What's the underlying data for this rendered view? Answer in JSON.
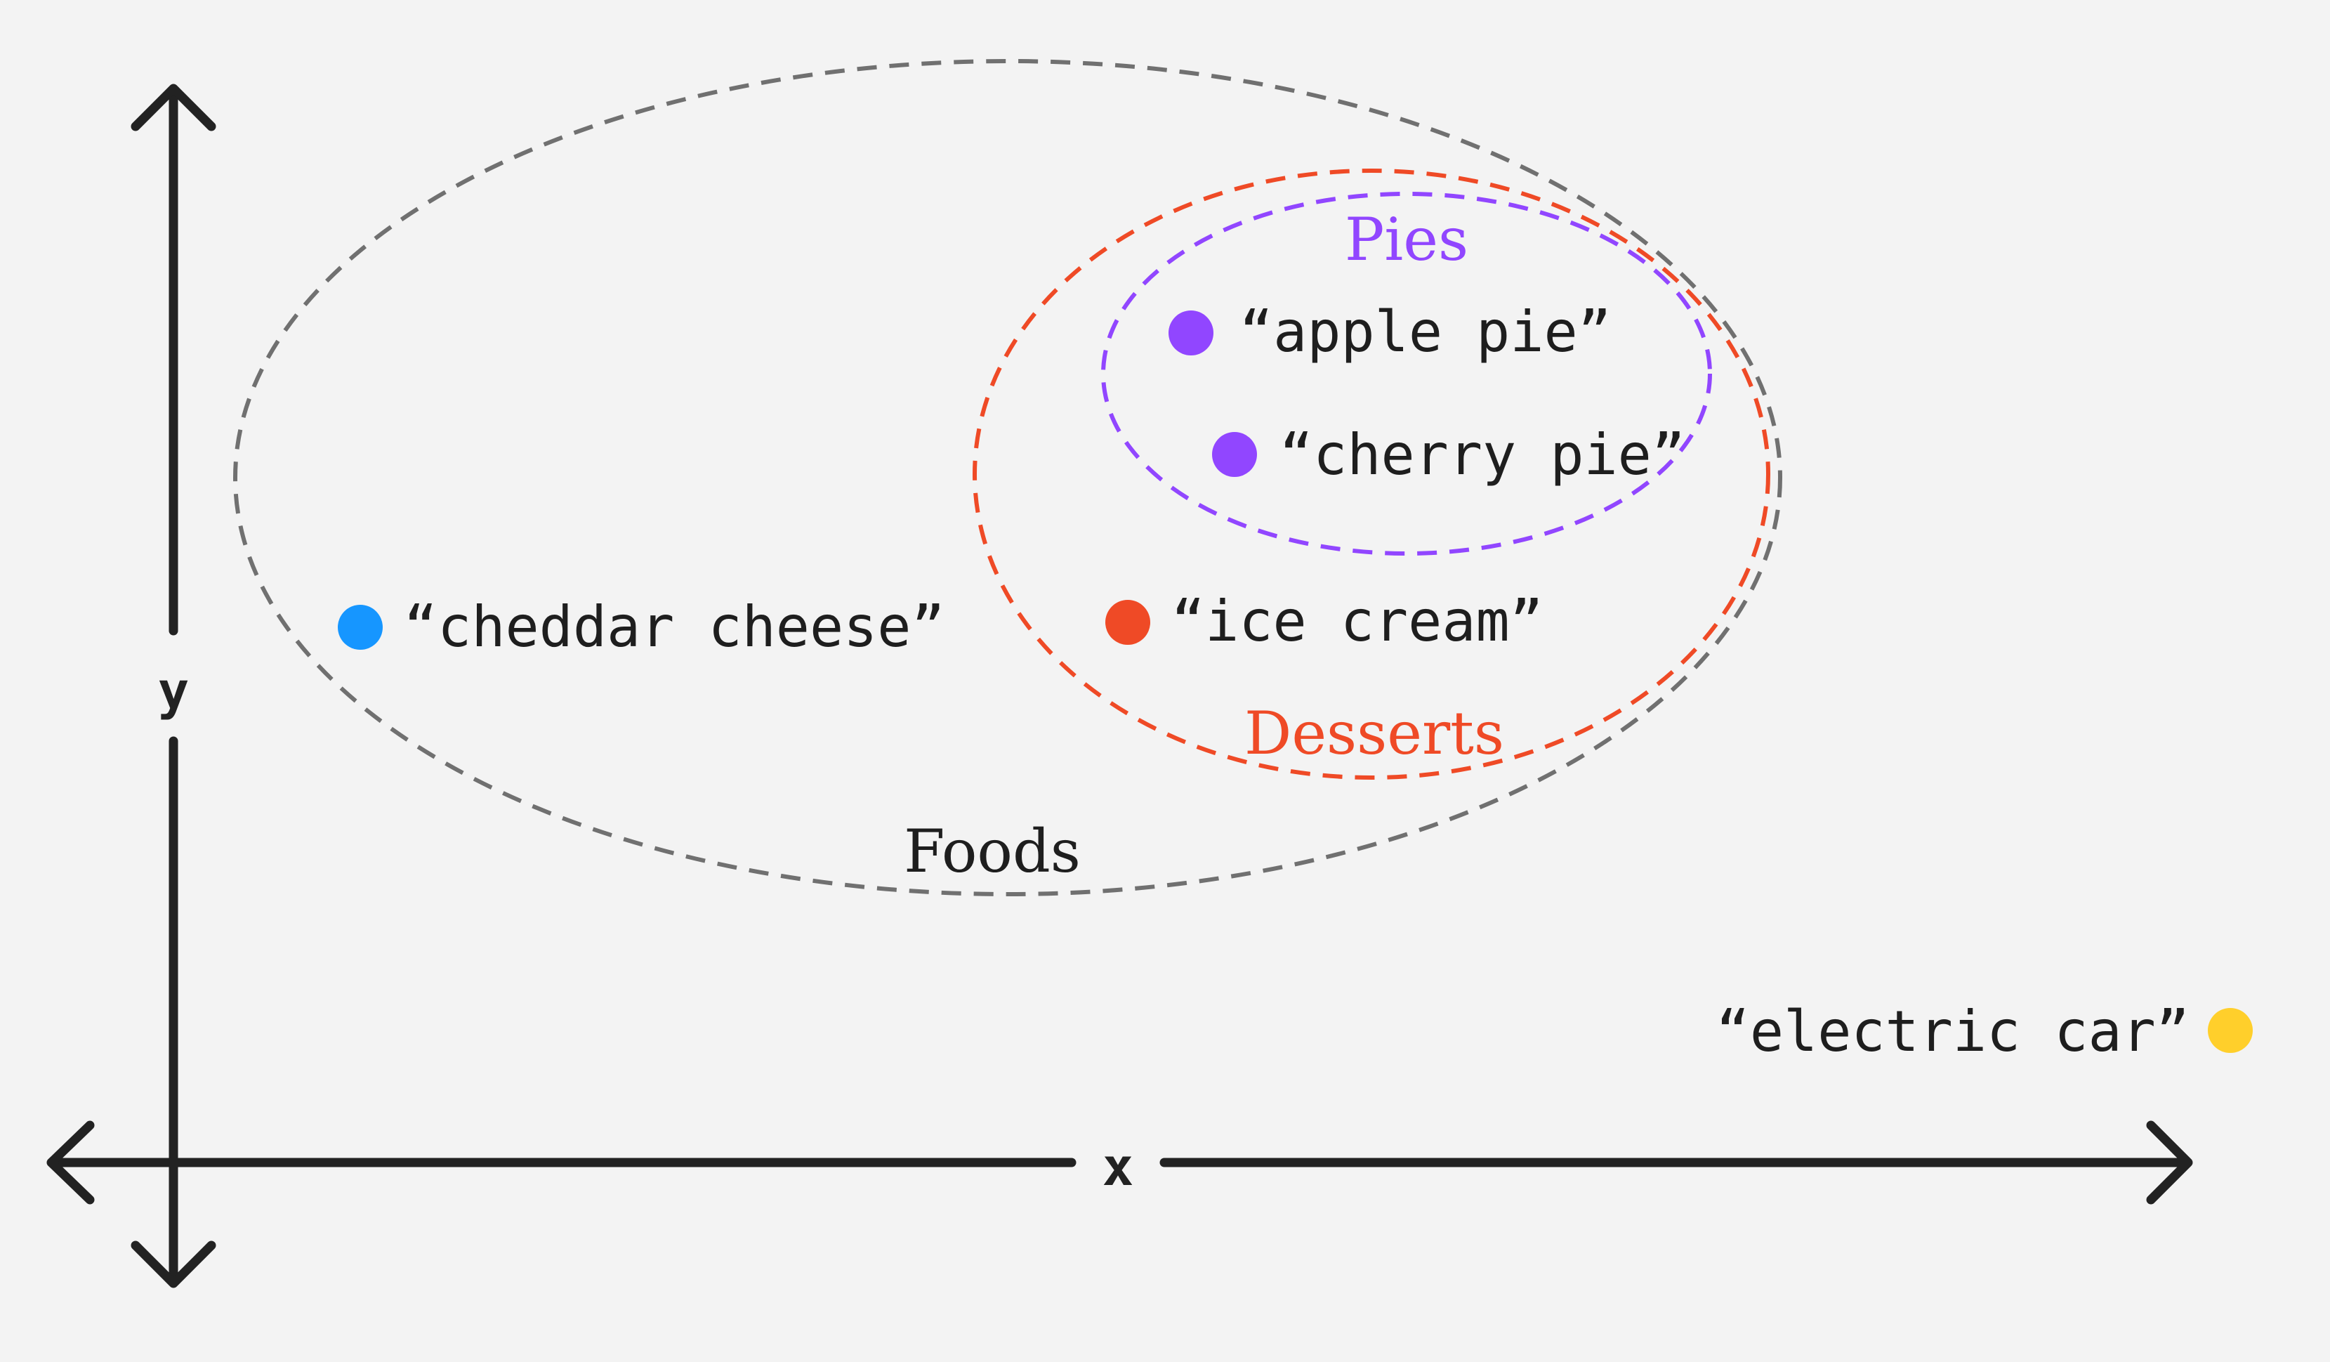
{
  "axes": {
    "x_label": "x",
    "y_label": "y",
    "color": "#222222"
  },
  "sets": {
    "foods": {
      "label": "Foods",
      "color": "#707070"
    },
    "desserts": {
      "label": "Desserts",
      "color": "#ef4a26"
    },
    "pies": {
      "label": "Pies",
      "color": "#9146ff"
    }
  },
  "points": {
    "apple_pie": {
      "label": "“apple pie”",
      "color": "#9146ff"
    },
    "cherry_pie": {
      "label": "“cherry pie”",
      "color": "#9146ff"
    },
    "cheddar_cheese": {
      "label": "“cheddar cheese”",
      "color": "#1696ff"
    },
    "ice_cream": {
      "label": "“ice cream”",
      "color": "#ef4a26"
    },
    "electric_car": {
      "label": "“electric car”",
      "color": "#ffcf2b"
    }
  }
}
